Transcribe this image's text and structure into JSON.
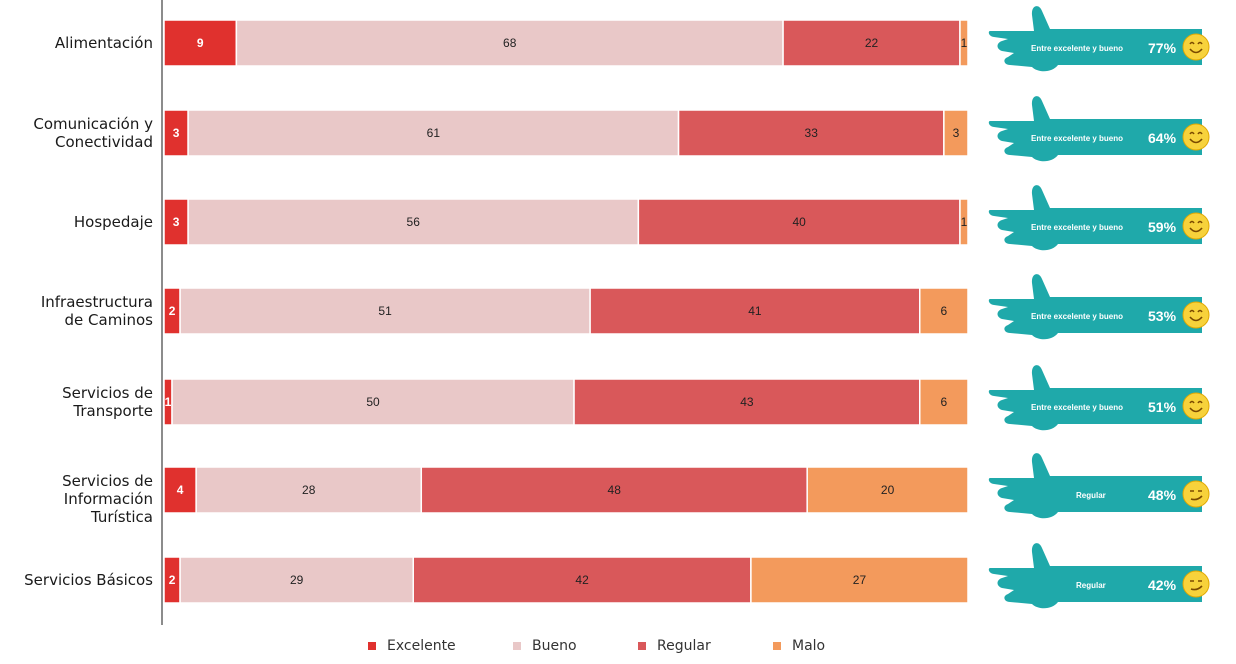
{
  "top_title_fragment": "",
  "colors": {
    "excelente": "#e0312e",
    "bueno": "#e9c8c8",
    "regular": "#d9585a",
    "malo": "#f39a5c",
    "hand": "#1fa9aa",
    "axis": "#8c8c8c"
  },
  "chart_data": {
    "type": "bar",
    "orientation": "horizontal",
    "stacked": true,
    "percent": true,
    "categories": [
      "Alimentación",
      "Comunicación y Conectividad",
      "Hospedaje",
      "Infraestructura de Caminos",
      "Servicios de Transporte",
      "Servicios de Información Turística",
      "Servicios Básicos"
    ],
    "category_lines": [
      [
        "Alimentación"
      ],
      [
        "Comunicación y",
        "Conectividad"
      ],
      [
        "Hospedaje"
      ],
      [
        "Infraestructura",
        "de Caminos"
      ],
      [
        "Servicios de",
        "Transporte"
      ],
      [
        "Servicios de",
        "Información Turística"
      ],
      [
        "Servicios Básicos"
      ]
    ],
    "series": [
      {
        "name": "Excelente",
        "values": [
          9,
          3,
          3,
          2,
          1,
          4,
          2
        ]
      },
      {
        "name": "Bueno",
        "values": [
          68,
          61,
          56,
          51,
          50,
          28,
          29
        ]
      },
      {
        "name": "Regular",
        "values": [
          22,
          33,
          40,
          41,
          43,
          48,
          42
        ]
      },
      {
        "name": "Malo",
        "values": [
          1,
          3,
          1,
          6,
          6,
          20,
          27
        ]
      }
    ],
    "legend_position": "bottom"
  },
  "summaries": [
    {
      "label": "Entre excelente y bueno",
      "percent": "77%",
      "mood": "smile"
    },
    {
      "label": "Entre excelente y bueno",
      "percent": "64%",
      "mood": "smile"
    },
    {
      "label": "Entre excelente y bueno",
      "percent": "59%",
      "mood": "smile"
    },
    {
      "label": "Entre excelente y bueno",
      "percent": "53%",
      "mood": "smile"
    },
    {
      "label": "Entre excelente y bueno",
      "percent": "51%",
      "mood": "smile"
    },
    {
      "label": "Regular",
      "percent": "48%",
      "mood": "smirk"
    },
    {
      "label": "Regular",
      "percent": "42%",
      "mood": "smirk"
    }
  ]
}
